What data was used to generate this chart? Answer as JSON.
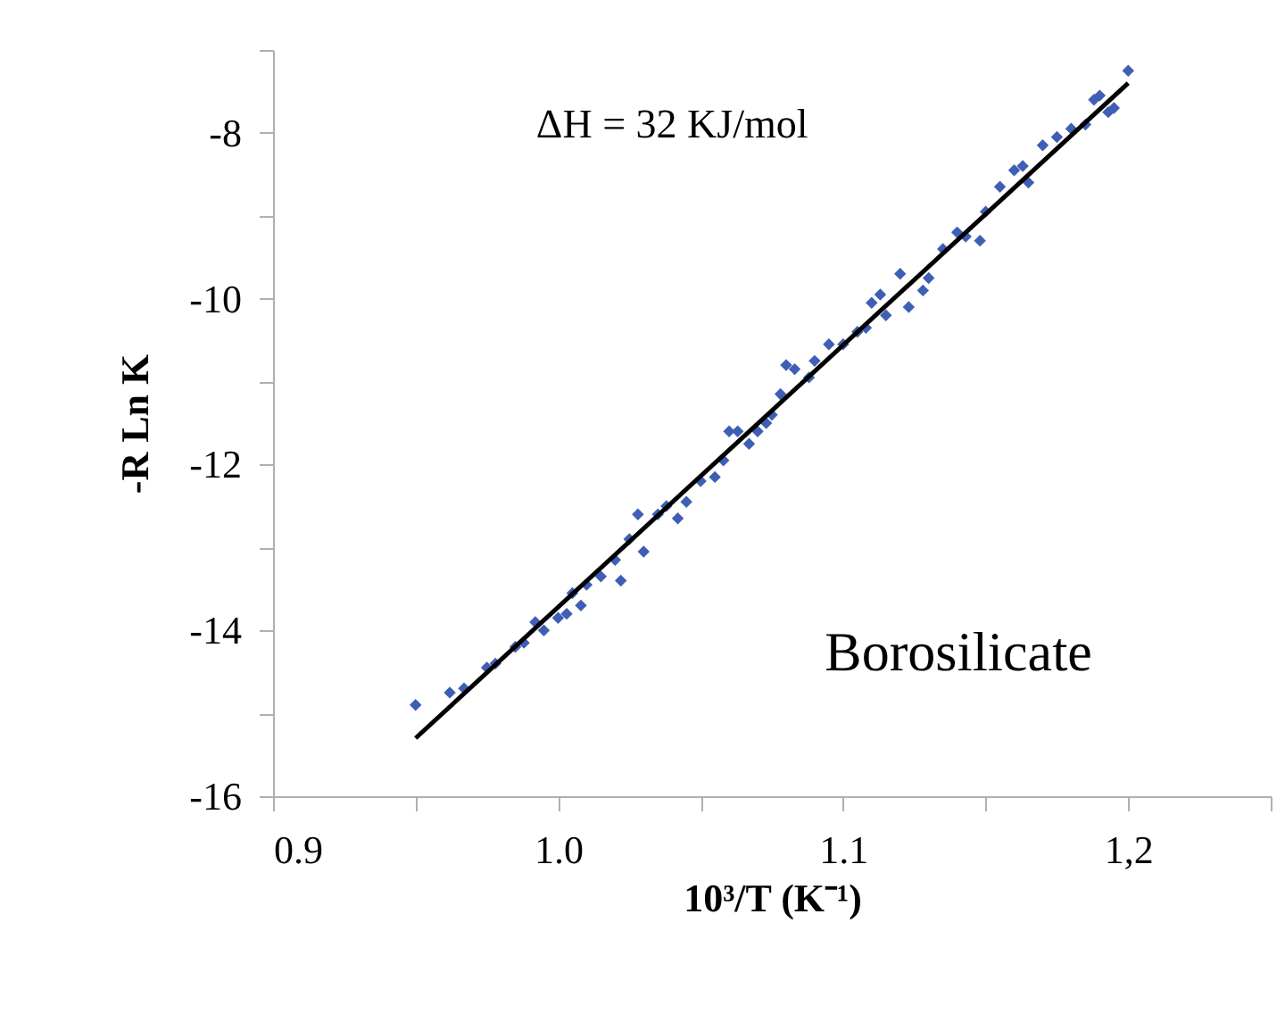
{
  "chart_data": {
    "type": "scatter",
    "xlabel": "10³/T (K⁻¹)",
    "ylabel": "-R Ln K",
    "annotations": [
      "ΔH = 32 KJ/mol",
      "Borosilicate"
    ],
    "xlim": [
      0.9,
      1.25
    ],
    "ylim": [
      -16,
      -7
    ],
    "xticks": [
      0.9,
      {
        "value": 0.95,
        "label": null
      },
      {
        "value": 1.0,
        "label": "1.0"
      },
      {
        "value": 1.05,
        "label": null
      },
      1.1,
      {
        "value": 1.15,
        "label": null
      },
      {
        "value": 1.2,
        "label": "1,2"
      },
      {
        "value": 1.25,
        "label": null
      }
    ],
    "yticks": [
      -16,
      {
        "value": -15,
        "label": null
      },
      -14,
      {
        "value": -13,
        "label": null
      },
      -12,
      {
        "value": -11,
        "label": null
      },
      -10,
      {
        "value": -9,
        "label": null
      },
      -8,
      {
        "value": -7,
        "label": null
      }
    ],
    "series": [
      {
        "marker": "diamond",
        "color": "#3f5fb5",
        "x": [
          0.95,
          0.962,
          0.967,
          0.975,
          0.978,
          0.985,
          0.988,
          0.992,
          0.995,
          1.0,
          1.003,
          1.005,
          1.008,
          1.01,
          1.015,
          1.02,
          1.022,
          1.025,
          1.028,
          1.03,
          1.035,
          1.038,
          1.042,
          1.045,
          1.05,
          1.055,
          1.058,
          1.06,
          1.063,
          1.067,
          1.07,
          1.073,
          1.075,
          1.078,
          1.08,
          1.083,
          1.088,
          1.09,
          1.095,
          1.1,
          1.105,
          1.108,
          1.11,
          1.113,
          1.115,
          1.12,
          1.123,
          1.128,
          1.13,
          1.135,
          1.14,
          1.143,
          1.148,
          1.15,
          1.155,
          1.16,
          1.163,
          1.165,
          1.17,
          1.175,
          1.18,
          1.185,
          1.188,
          1.19,
          1.193,
          1.195,
          1.2
        ],
        "values": [
          -14.9,
          -14.75,
          -14.7,
          -14.45,
          -14.4,
          -14.2,
          -14.15,
          -13.9,
          -14.0,
          -13.85,
          -13.8,
          -13.55,
          -13.7,
          -13.45,
          -13.35,
          -13.15,
          -13.4,
          -12.9,
          -12.6,
          -13.05,
          -12.6,
          -12.5,
          -12.65,
          -12.45,
          -12.2,
          -12.15,
          -11.95,
          -11.6,
          -11.6,
          -11.75,
          -11.6,
          -11.5,
          -11.4,
          -11.15,
          -10.8,
          -10.85,
          -10.95,
          -10.75,
          -10.55,
          -10.55,
          -10.4,
          -10.35,
          -10.05,
          -9.95,
          -10.2,
          -9.7,
          -10.1,
          -9.9,
          -9.75,
          -9.4,
          -9.2,
          -9.25,
          -9.3,
          -8.95,
          -8.65,
          -8.45,
          -8.4,
          -8.6,
          -8.15,
          -8.05,
          -7.95,
          -7.9,
          -7.6,
          -7.55,
          -7.75,
          -7.7,
          -7.25
        ]
      },
      {
        "type": "line",
        "color": "#000000",
        "line_style": "solid",
        "x": [
          0.95,
          1.2
        ],
        "values": [
          -15.3,
          -7.4
        ]
      }
    ]
  }
}
